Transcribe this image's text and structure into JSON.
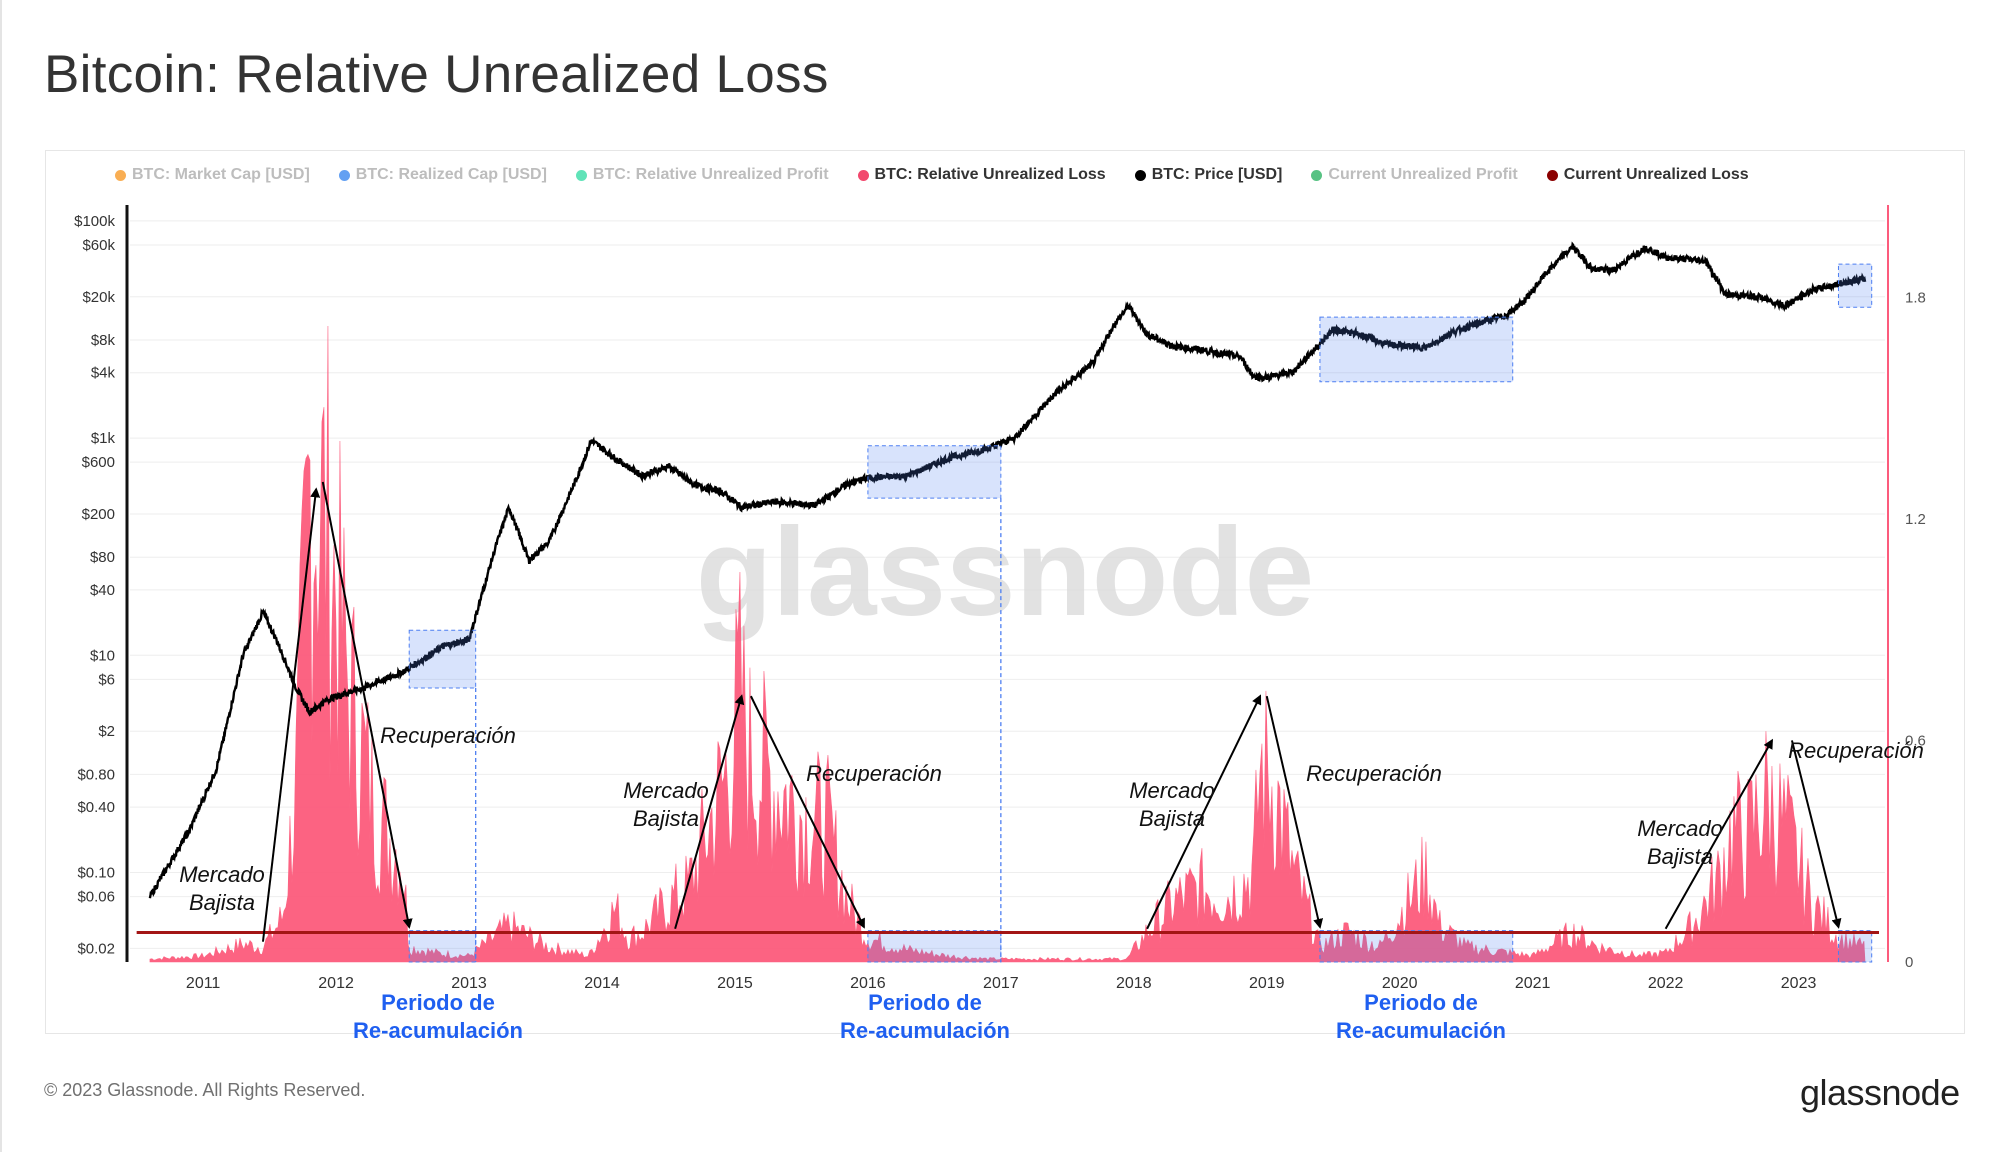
{
  "title": "Bitcoin: Relative Unrealized Loss",
  "footer": {
    "copyright": "© 2023 Glassnode. All Rights Reserved.",
    "logo": "glassnode"
  },
  "watermark": "glassnode",
  "legend": [
    {
      "label": "BTC: Market Cap [USD]",
      "color": "#f7931a",
      "active": false
    },
    {
      "label": "BTC: Realized Cap [USD]",
      "color": "#2f80ed",
      "active": false
    },
    {
      "label": "BTC: Relative Unrealized Profit",
      "color": "#2bd9a0",
      "active": false
    },
    {
      "label": "BTC: Relative Unrealized Loss",
      "color": "#f2486d",
      "active": true
    },
    {
      "label": "BTC: Price [USD]",
      "color": "#000000",
      "active": true
    },
    {
      "label": "Current Unrealized Profit",
      "color": "#1fae5a",
      "active": false
    },
    {
      "label": "Current Unrealized Loss",
      "color": "#8b0000",
      "active": true
    }
  ],
  "annotations": {
    "bear": "Mercado\nBajista",
    "recovery": "Recuperación",
    "reaccumulation": "Periodo de\nRe-acumulación"
  },
  "colors": {
    "loss": "#fc5b7c",
    "price": "#000000",
    "current_loss": "#a31515",
    "band": "#4d7ff2",
    "annotation_blue": "#1f5ff0"
  },
  "chart_data": {
    "type": "line",
    "x_ticks": [
      "2011",
      "2012",
      "2013",
      "2014",
      "2015",
      "2016",
      "2017",
      "2018",
      "2019",
      "2020",
      "2021",
      "2022",
      "2023"
    ],
    "y_left_ticks": [
      "$100k",
      "$60k",
      "$20k",
      "$8k",
      "$4k",
      "$1k",
      "$600",
      "$200",
      "$80",
      "$40",
      "$10",
      "$6",
      "$2",
      "$0.80",
      "$0.40",
      "$0.10",
      "$0.06",
      "$0.02"
    ],
    "y_left_scale": "log",
    "y_right_ticks": [
      "1.8",
      "1.2",
      "0.6",
      "0"
    ],
    "y_right_range": [
      0,
      2.05
    ],
    "current_unrealized_loss": 0.08,
    "price_series": {
      "name": "BTC: Price [USD]",
      "x": [
        2010.6,
        2010.9,
        2011.1,
        2011.3,
        2011.45,
        2011.55,
        2011.7,
        2011.8,
        2011.95,
        2012.2,
        2012.5,
        2012.8,
        2013.0,
        2013.2,
        2013.3,
        2013.45,
        2013.6,
        2013.8,
        2013.92,
        2014.1,
        2014.3,
        2014.5,
        2014.7,
        2014.9,
        2015.05,
        2015.3,
        2015.6,
        2015.85,
        2016.0,
        2016.3,
        2016.6,
        2016.9,
        2017.1,
        2017.4,
        2017.7,
        2017.85,
        2017.96,
        2018.1,
        2018.3,
        2018.5,
        2018.8,
        2018.9,
        2019.0,
        2019.2,
        2019.5,
        2019.7,
        2019.9,
        2020.2,
        2020.4,
        2020.6,
        2020.8,
        2020.95,
        2021.1,
        2021.3,
        2021.45,
        2021.6,
        2021.85,
        2022.0,
        2022.3,
        2022.45,
        2022.7,
        2022.9,
        2023.1,
        2023.4,
        2023.5
      ],
      "values": [
        0.06,
        0.25,
        0.9,
        10,
        25,
        14,
        5,
        3,
        4,
        5,
        7,
        12,
        14,
        100,
        230,
        75,
        110,
        400,
        950,
        650,
        450,
        550,
        370,
        320,
        230,
        260,
        240,
        380,
        430,
        450,
        650,
        800,
        1000,
        2500,
        5000,
        11000,
        16500,
        9000,
        7000,
        6500,
        5600,
        3700,
        3600,
        4100,
        10000,
        9000,
        7300,
        6800,
        9500,
        11500,
        13500,
        19000,
        33000,
        58000,
        36000,
        35000,
        57000,
        46000,
        43000,
        21000,
        20000,
        16500,
        23000,
        28000,
        29000
      ]
    },
    "loss_series": {
      "name": "BTC: Relative Unrealized Loss",
      "x": [
        2010.6,
        2011.0,
        2011.3,
        2011.45,
        2011.6,
        2011.7,
        2011.8,
        2011.85,
        2011.95,
        2012.1,
        2012.3,
        2012.5,
        2012.55,
        2012.75,
        2013.0,
        2013.3,
        2013.6,
        2013.9,
        2014.1,
        2014.2,
        2014.3,
        2014.5,
        2014.65,
        2014.8,
        2014.95,
        2015.04,
        2015.1,
        2015.3,
        2015.5,
        2015.7,
        2015.85,
        2016.0,
        2016.3,
        2016.6,
        2016.9,
        2017.1,
        2017.5,
        2017.95,
        2018.1,
        2018.3,
        2018.5,
        2018.7,
        2018.9,
        2018.95,
        2019.05,
        2019.2,
        2019.35,
        2019.4,
        2019.6,
        2019.85,
        2020.2,
        2020.3,
        2020.5,
        2021.0,
        2021.3,
        2021.5,
        2021.8,
        2022.0,
        2022.2,
        2022.4,
        2022.5,
        2022.6,
        2022.75,
        2022.9,
        2023.1,
        2023.3,
        2023.5
      ],
      "values": [
        0.01,
        0.02,
        0.06,
        0.05,
        0.15,
        0.6,
        1.6,
        1.6,
        1.4,
        0.9,
        0.5,
        0.35,
        0.05,
        0.03,
        0.02,
        0.12,
        0.05,
        0.02,
        0.18,
        0.08,
        0.1,
        0.2,
        0.25,
        0.45,
        0.65,
        0.9,
        0.7,
        0.6,
        0.5,
        0.45,
        0.2,
        0.08,
        0.04,
        0.02,
        0.01,
        0.01,
        0.01,
        0.01,
        0.1,
        0.2,
        0.25,
        0.22,
        0.3,
        0.65,
        0.6,
        0.3,
        0.12,
        0.05,
        0.1,
        0.05,
        0.3,
        0.12,
        0.05,
        0.02,
        0.1,
        0.05,
        0.02,
        0.03,
        0.12,
        0.28,
        0.45,
        0.4,
        0.55,
        0.45,
        0.2,
        0.08,
        0.05
      ]
    },
    "reaccumulation_ranges": [
      [
        2012.55,
        2013.05
      ],
      [
        2016.0,
        2017.0
      ],
      [
        2019.4,
        2020.85
      ],
      [
        2023.3,
        2023.55
      ]
    ]
  }
}
